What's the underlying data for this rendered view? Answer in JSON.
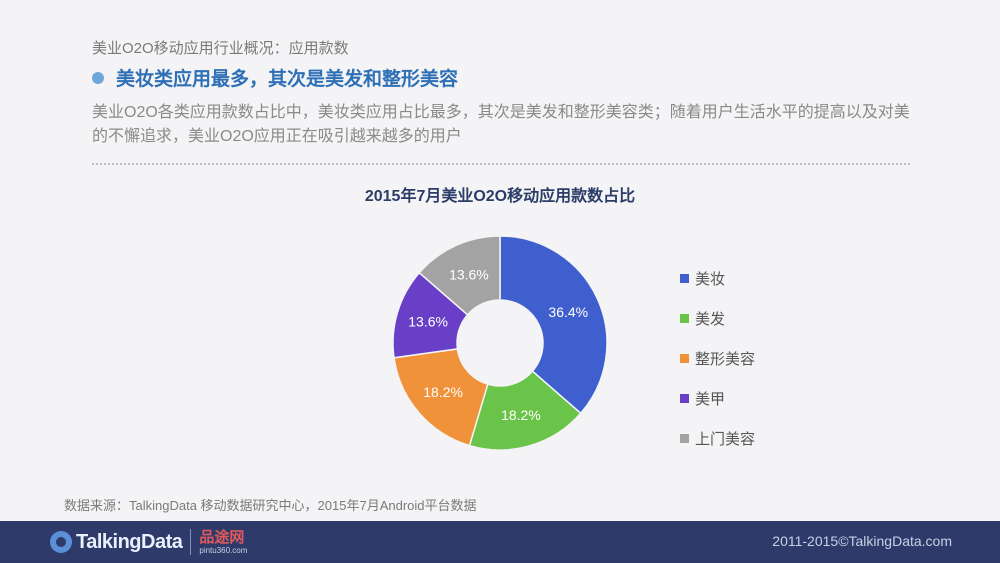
{
  "header": {
    "section_title": "美业O2O移动应用行业概况：应用款数",
    "headline": "美妆类应用最多，其次是美发和整形美容",
    "description": "美业O2O各类应用款数占比中，美妆类应用占比最多，其次是美发和整形美容类；随着用户生活水平的提高以及对美的不懈追求，美业O2O应用正在吸引越来越多的用户"
  },
  "chart_data": {
    "type": "pie",
    "donut": true,
    "title": "2015年7月美业O2O移动应用款数占比",
    "legend_position": "right",
    "categories": [
      "美妆",
      "美发",
      "整形美容",
      "美甲",
      "上门美容"
    ],
    "values": [
      36.4,
      18.2,
      18.2,
      13.6,
      13.6
    ],
    "labels": [
      "36.4%",
      "18.2%",
      "18.2%",
      "13.6%",
      "13.6%"
    ],
    "colors": [
      "#3f5fcf",
      "#6ac44a",
      "#f0923a",
      "#6a3fc8",
      "#a3a3a3"
    ]
  },
  "source": "数据来源：TalkingData 移动数据研究中心，2015年7月Android平台数据",
  "footer": {
    "logo_text": "TalkingData",
    "partner_logo": "品途网",
    "partner_sub": "pintu360.com",
    "copyright": "2011-2015©TalkingData.com"
  }
}
